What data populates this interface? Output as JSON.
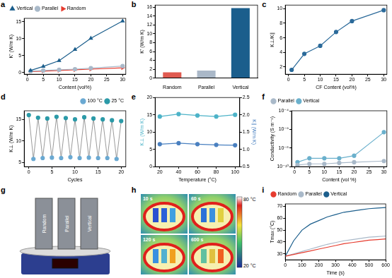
{
  "chart_data": [
    {
      "panel_label": "a",
      "type": "line",
      "x": [
        1,
        5,
        10,
        15,
        20,
        30
      ],
      "xlabel": "Content (vol%)",
      "ylabel": "K' (W/m K)",
      "xlim": [
        -1,
        31
      ],
      "xticks": [
        0,
        5,
        10,
        15,
        20,
        25,
        30
      ],
      "ylim": [
        -0.5,
        16
      ],
      "yticks": [
        0,
        5,
        10,
        15
      ],
      "grid": false,
      "legend": "top left",
      "series": [
        {
          "name": "Vertical",
          "color": "#1b5e8c",
          "marker": "triangle",
          "line_style": "solid",
          "values": [
            0.6,
            1.8,
            3.5,
            6.8,
            10.1,
            15.2
          ]
        },
        {
          "name": "Parallel",
          "color": "#a9b9c9",
          "marker": "circle",
          "line_style": "solid",
          "values": [
            0.4,
            0.6,
            0.8,
            1.0,
            1.3,
            1.9
          ]
        },
        {
          "name": "Random",
          "color": "#e63b2e",
          "marker": "triangle_right",
          "line_style": "solid",
          "values": [
            0.3,
            0.4,
            0.6,
            0.8,
            1.0,
            1.4
          ]
        }
      ]
    },
    {
      "panel_label": "b",
      "type": "bar",
      "categories": [
        "Random",
        "Parallel",
        "Vertical"
      ],
      "values": [
        1.3,
        1.7,
        15.8
      ],
      "colors": [
        "#e05a50",
        "#aab8c8",
        "#1b5e8c"
      ],
      "ylabel": "K' (W/m K)",
      "ylim": [
        0,
        16.5
      ],
      "yticks": [
        0,
        2,
        4,
        6,
        8,
        10,
        12,
        14,
        16
      ],
      "grid": false
    },
    {
      "panel_label": "c",
      "type": "line",
      "x": [
        1,
        5,
        10,
        15,
        20,
        30
      ],
      "values": [
        1.6,
        3.8,
        4.9,
        6.8,
        8.3,
        9.8
      ],
      "color": "#2b6a9a",
      "marker": "circle",
      "line_style": "solid",
      "xlabel": "CF Content (vol%)",
      "ylabel": "K⊥/K∥",
      "xlim": [
        -1,
        31
      ],
      "xticks": [
        0,
        5,
        10,
        15,
        20,
        25,
        30
      ],
      "ylim": [
        1,
        10.5
      ],
      "yticks": [
        2,
        4,
        6,
        8,
        10
      ],
      "grid": false
    },
    {
      "panel_label": "d",
      "type": "line",
      "x": [
        0,
        1,
        2,
        3,
        4,
        5,
        6,
        7,
        8,
        9,
        10,
        11,
        12,
        13,
        14,
        15,
        16,
        17,
        18,
        19,
        20
      ],
      "xlabel": "Cycles",
      "ylabel": "K⊥ (W/m K)",
      "xlim": [
        -1,
        21
      ],
      "xticks": [
        0,
        5,
        10,
        15,
        20
      ],
      "ylim": [
        4,
        17
      ],
      "yticks": [
        5,
        10,
        15
      ],
      "grid": false,
      "legend": "top right",
      "line_style": "solid",
      "series": [
        {
          "name": "100 °C",
          "color": "#6aa9d2",
          "marker": "circle",
          "line_style": "none",
          "values": [
            null,
            5.8,
            null,
            6.0,
            null,
            6.1,
            null,
            6.0,
            null,
            6.2,
            null,
            6.0,
            null,
            6.1,
            null,
            6.0,
            null,
            6.0,
            null,
            5.8,
            null
          ]
        },
        {
          "name": "25 °C",
          "color": "#2b9aa8",
          "marker": "circle",
          "line_style": "none",
          "values": [
            16.0,
            null,
            15.4,
            null,
            15.2,
            null,
            15.6,
            null,
            15.3,
            null,
            15.0,
            null,
            15.5,
            null,
            15.2,
            null,
            15.0,
            null,
            14.8,
            null,
            14.6
          ]
        }
      ]
    },
    {
      "panel_label": "e",
      "type": "line",
      "x": [
        20,
        40,
        60,
        80,
        100
      ],
      "xlabel": "Temperature (°C)",
      "ylabel": "K⊥ (W/m K)",
      "y2label": "K∥ (W/m K)",
      "xlim": [
        15,
        105
      ],
      "xticks": [
        20,
        40,
        60,
        80,
        100
      ],
      "ylim": [
        0,
        20
      ],
      "yticks": [
        0,
        5,
        10,
        15,
        20
      ],
      "y2lim": [
        0.5,
        2.5
      ],
      "y2ticks": [
        0.5,
        {
          "value": 1,
          "label": "1.0"
        },
        1.5,
        {
          "value": 2,
          "label": "2.0"
        },
        2.5
      ],
      "grid": false,
      "series": [
        {
          "color": "#4db3c8",
          "marker": "circle",
          "line_style": "solid",
          "values": [
            14.5,
            15.2,
            14.8,
            14.5,
            15.0
          ]
        },
        {
          "color": "#4a80c0",
          "marker": "circle",
          "line_style": "solid",
          "axis": "y2",
          "values": [
            1.15,
            1.18,
            1.15,
            1.13,
            1.12
          ]
        }
      ]
    },
    {
      "panel_label": "f",
      "type": "line",
      "x": [
        1,
        5,
        10,
        15,
        20,
        30
      ],
      "log": "y",
      "xlabel": "Content (vol %)",
      "ylabel": "Conductivity (S m⁻¹)",
      "xlim": [
        -1,
        31
      ],
      "xticks": [
        0,
        5,
        10,
        15,
        20,
        25,
        30
      ],
      "ylim": [
        1e-10,
        0.0001
      ],
      "yticks": [
        {
          "value": 1e-10,
          "label": "10⁻¹⁰"
        },
        {
          "value": 1e-08,
          "label": "10⁻⁸"
        },
        {
          "value": 1e-06,
          "label": "10⁻⁶"
        },
        {
          "value": 0.0001,
          "label": "10⁻⁴"
        }
      ],
      "grid": false,
      "legend": "top left",
      "series": [
        {
          "name": "Parallel",
          "color": "#a9b9c9",
          "marker": "circle",
          "line_style": "solid",
          "values": [
            1.5e-10,
            2e-10,
            2e-10,
            2.5e-10,
            3e-10,
            4e-10
          ]
        },
        {
          "name": "Vertical",
          "color": "#6ab0cc",
          "marker": "circle",
          "line_style": "solid",
          "values": [
            3e-10,
            8e-10,
            8e-10,
            8e-10,
            1.5e-09,
            5e-07
          ]
        }
      ]
    },
    {
      "panel_label": "g",
      "type": "photo",
      "labels": [
        "Random",
        "Parallel",
        "Vertical"
      ]
    },
    {
      "panel_label": "h",
      "type": "thermal_image",
      "frames": [
        "10 s",
        "60 s",
        "120 s",
        "600 s"
      ],
      "colorbar_labels": [
        "80 °C",
        "20 °C"
      ]
    },
    {
      "panel_label": "i",
      "type": "line",
      "x": [
        0,
        50,
        100,
        150,
        200,
        250,
        300,
        350,
        400,
        450,
        500,
        550,
        600
      ],
      "xlabel": "Time (s)",
      "ylabel": "Tmax (°C)",
      "xlim": [
        0,
        600
      ],
      "xticks": [
        0,
        100,
        200,
        300,
        400,
        500,
        600
      ],
      "ylim": [
        25,
        72
      ],
      "yticks": [
        30,
        40,
        50,
        60,
        70
      ],
      "grid": false,
      "legend": "top left",
      "series": [
        {
          "name": "Random",
          "color": "#e63b2e",
          "marker": "none",
          "line_style": "solid",
          "values": [
            28,
            29.5,
            31,
            32.5,
            34,
            35.5,
            37,
            38.5,
            39.5,
            40.5,
            41.5,
            42,
            42.5
          ]
        },
        {
          "name": "Parallel",
          "color": "#a9b9c9",
          "marker": "none",
          "line_style": "solid",
          "values": [
            28,
            30,
            32,
            34,
            36,
            38,
            39.5,
            41,
            42,
            43,
            44,
            44.5,
            45
          ]
        },
        {
          "name": "Vertical",
          "color": "#1b5e8c",
          "marker": "none",
          "line_style": "solid",
          "values": [
            28,
            41,
            50,
            55,
            58,
            61,
            63,
            65,
            66,
            67,
            68,
            68.5,
            69
          ]
        }
      ]
    }
  ]
}
